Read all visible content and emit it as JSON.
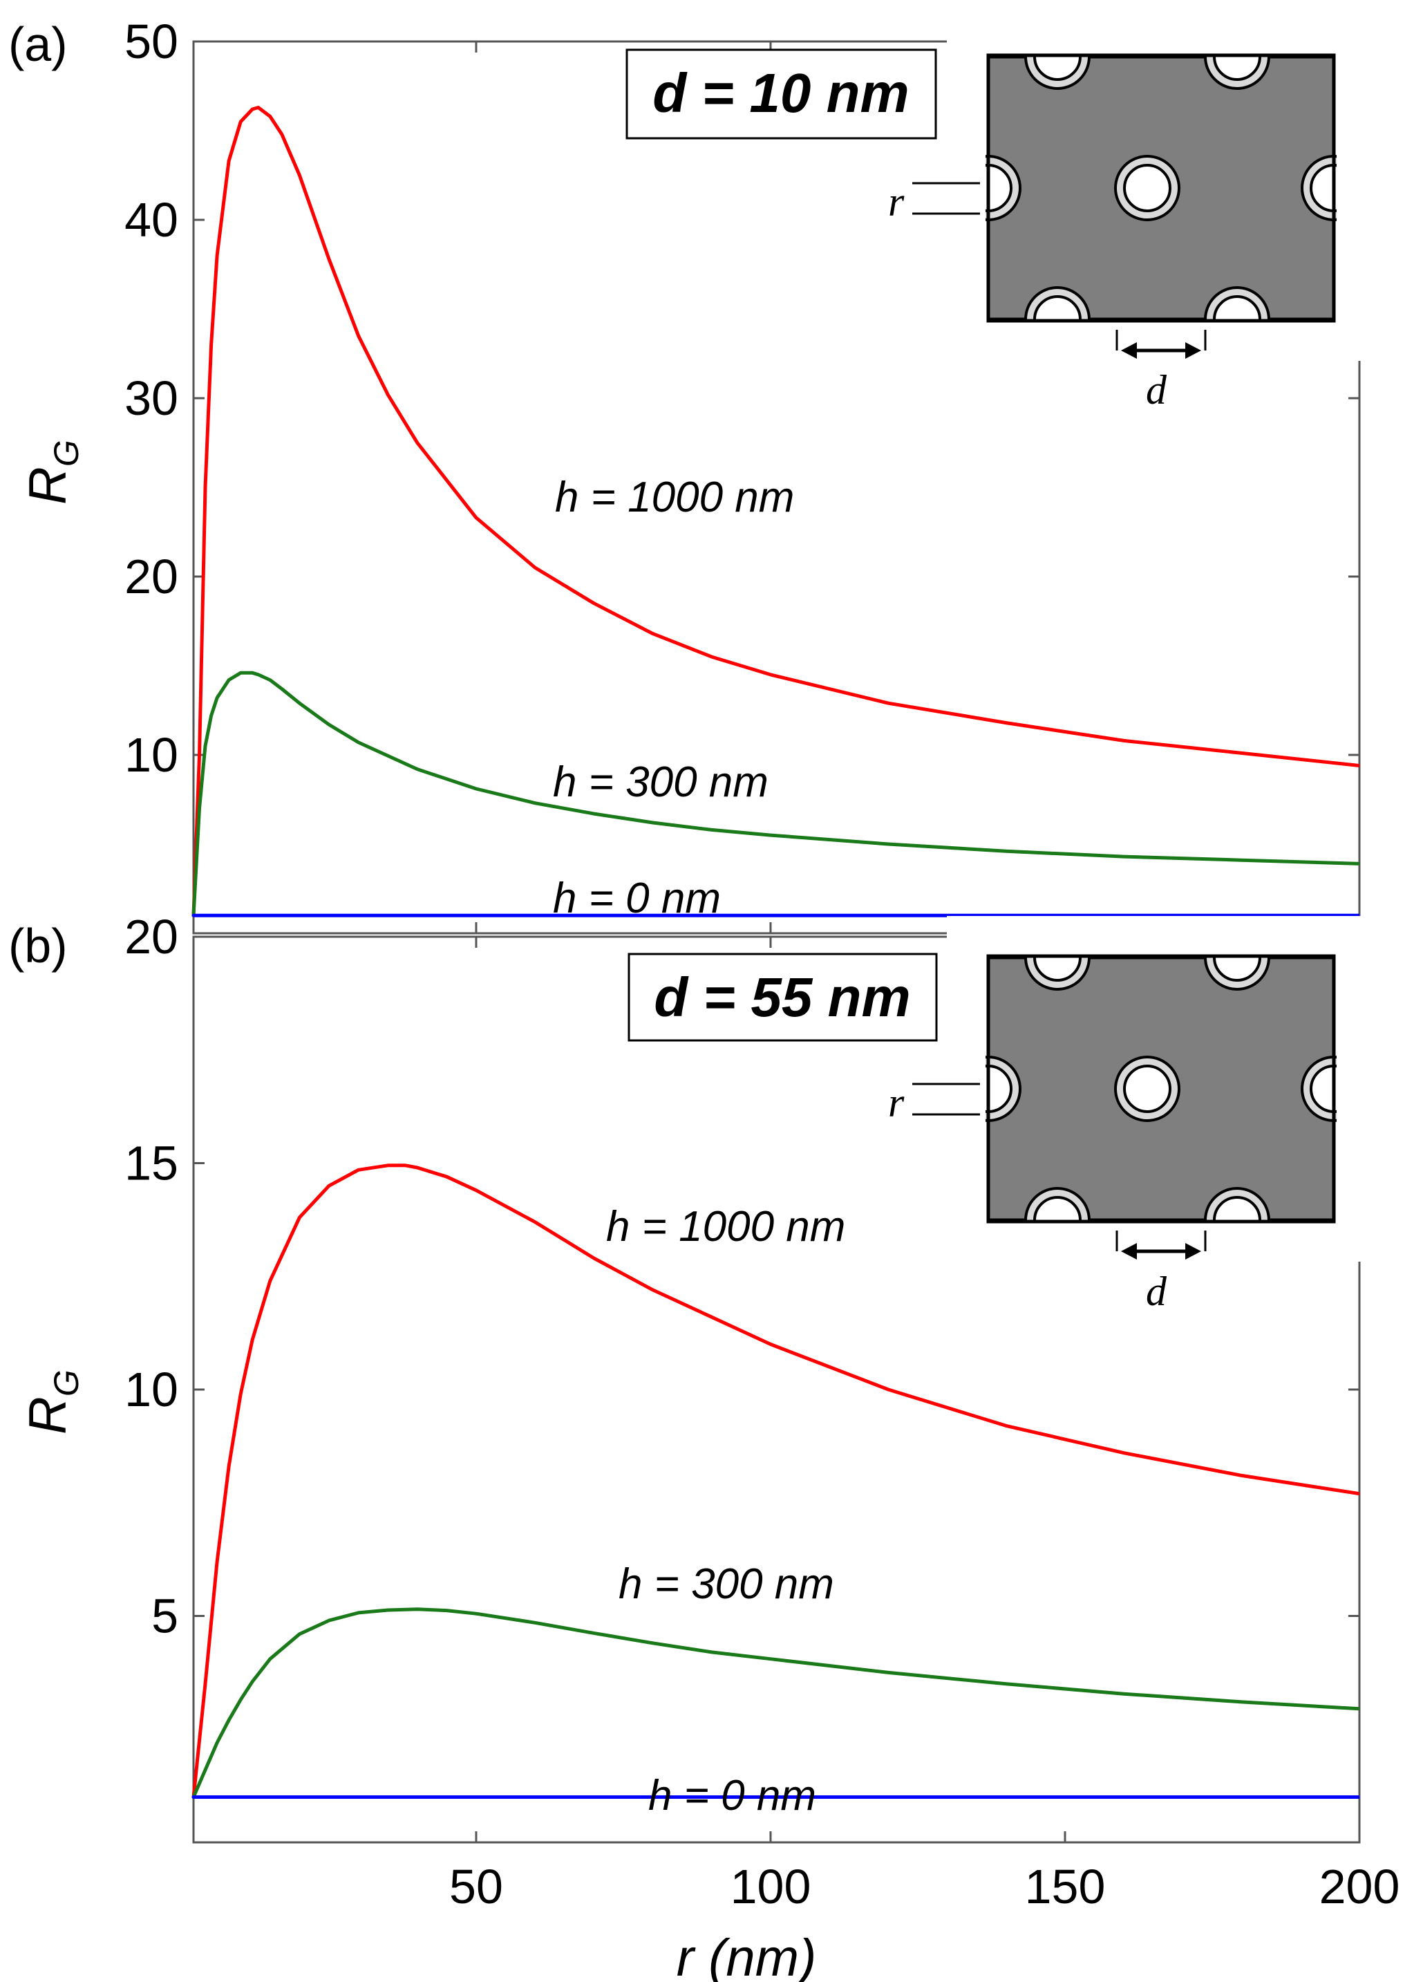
{
  "chart_data": [
    {
      "panel": "(a)",
      "type": "line",
      "box_label": "d = 10 nm",
      "xlabel": "r (nm)",
      "ylabel": "R_G",
      "ylabel_main": "R",
      "ylabel_sub": "G",
      "xlim": [
        2,
        200
      ],
      "ylim": [
        0,
        50
      ],
      "xticks": [
        50,
        100,
        150,
        200
      ],
      "yticks": [
        10,
        20,
        30,
        40,
        50
      ],
      "ytick_labels": [
        "10",
        "20",
        "30",
        "40",
        "50"
      ],
      "series": [
        {
          "name": "h = 1000 nm",
          "color": "#ff0000",
          "x": [
            2,
            3,
            4,
            5,
            6,
            8,
            10,
            12,
            13,
            15,
            17,
            20,
            25,
            30,
            35,
            40,
            50,
            60,
            70,
            80,
            90,
            100,
            120,
            140,
            160,
            180,
            200
          ],
          "y": [
            1,
            10,
            25,
            33,
            38,
            43.3,
            45.5,
            46.2,
            46.3,
            45.8,
            44.8,
            42.5,
            37.8,
            33.5,
            30.2,
            27.5,
            23.3,
            20.5,
            18.5,
            16.8,
            15.5,
            14.5,
            12.9,
            11.8,
            10.8,
            10.1,
            9.4
          ]
        },
        {
          "name": "h = 300 nm",
          "color": "#1a7a1a",
          "x": [
            2,
            3,
            4,
            5,
            6,
            8,
            10,
            12,
            13,
            15,
            17,
            20,
            25,
            30,
            40,
            50,
            60,
            70,
            80,
            90,
            100,
            120,
            140,
            160,
            180,
            200
          ],
          "y": [
            1,
            7,
            10.5,
            12.2,
            13.2,
            14.2,
            14.6,
            14.6,
            14.5,
            14.2,
            13.7,
            12.9,
            11.7,
            10.7,
            9.2,
            8.1,
            7.3,
            6.7,
            6.2,
            5.8,
            5.5,
            5.0,
            4.6,
            4.3,
            4.1,
            3.9
          ]
        },
        {
          "name": "h = 0 nm",
          "color": "#0000ff",
          "x": [
            2,
            200
          ],
          "y": [
            1,
            1
          ]
        }
      ]
    },
    {
      "panel": "(b)",
      "type": "line",
      "box_label": "d = 55 nm",
      "xlabel": "r (nm)",
      "ylabel": "R_G",
      "ylabel_main": "R",
      "ylabel_sub": "G",
      "xlim": [
        2,
        200
      ],
      "ylim": [
        0,
        20
      ],
      "xticks": [
        50,
        100,
        150,
        200
      ],
      "xtick_labels": [
        "50",
        "100",
        "150",
        "200"
      ],
      "yticks": [
        5,
        10,
        15,
        20
      ],
      "ytick_labels": [
        "5",
        "10",
        "15",
        "20"
      ],
      "series": [
        {
          "name": "h = 1000 nm",
          "color": "#ff0000",
          "x": [
            2,
            4,
            6,
            8,
            10,
            12,
            15,
            20,
            25,
            30,
            35,
            38,
            40,
            45,
            50,
            60,
            70,
            80,
            90,
            100,
            120,
            140,
            160,
            180,
            200
          ],
          "y": [
            1,
            3.5,
            6.2,
            8.3,
            9.9,
            11.1,
            12.4,
            13.8,
            14.5,
            14.85,
            14.95,
            14.95,
            14.9,
            14.7,
            14.4,
            13.7,
            12.9,
            12.2,
            11.6,
            11.0,
            10.0,
            9.2,
            8.6,
            8.1,
            7.7
          ]
        },
        {
          "name": "h = 300 nm",
          "color": "#1a7a1a",
          "x": [
            2,
            4,
            6,
            8,
            10,
            12,
            15,
            20,
            25,
            30,
            35,
            40,
            45,
            50,
            60,
            70,
            80,
            90,
            100,
            120,
            140,
            160,
            180,
            200
          ],
          "y": [
            1,
            1.6,
            2.2,
            2.7,
            3.15,
            3.55,
            4.05,
            4.6,
            4.9,
            5.07,
            5.13,
            5.15,
            5.12,
            5.05,
            4.85,
            4.62,
            4.4,
            4.2,
            4.05,
            3.75,
            3.5,
            3.28,
            3.1,
            2.95
          ]
        },
        {
          "name": "h = 0 nm",
          "color": "#0000ff",
          "x": [
            2,
            200
          ],
          "y": [
            1,
            1
          ]
        }
      ]
    }
  ],
  "inset": {
    "label_r": "r",
    "label_d": "d"
  }
}
